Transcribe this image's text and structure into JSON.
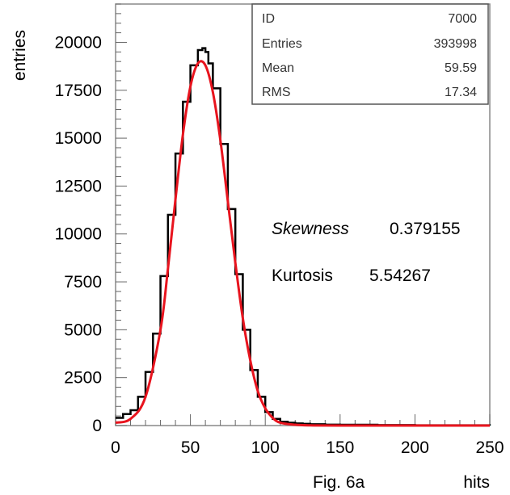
{
  "chart_data": {
    "type": "histogram",
    "xlabel": "hits",
    "ylabel": "entries",
    "caption": "Fig. 6a",
    "xlim": [
      0,
      250
    ],
    "ylim": [
      0,
      22000
    ],
    "x_ticks": [
      0,
      50,
      100,
      150,
      200,
      250
    ],
    "y_ticks": [
      0,
      2500,
      5000,
      7500,
      10000,
      12500,
      15000,
      17500,
      20000
    ],
    "series": [
      {
        "kind": "histogram",
        "color": "#000000",
        "x": [
          0,
          5,
          10,
          15,
          20,
          25,
          30,
          35,
          40,
          45,
          50,
          55,
          58,
          60,
          62,
          65,
          70,
          75,
          80,
          85,
          90,
          95,
          100,
          105,
          110,
          115,
          120,
          125,
          130,
          140,
          150,
          175,
          200,
          250
        ],
        "y": [
          400,
          600,
          800,
          1500,
          2800,
          4800,
          7800,
          11000,
          14200,
          16900,
          18800,
          19600,
          19700,
          19500,
          18900,
          17600,
          14700,
          11300,
          7900,
          5000,
          2900,
          1500,
          700,
          350,
          200,
          150,
          110,
          90,
          70,
          50,
          40,
          25,
          15,
          5
        ]
      },
      {
        "kind": "fit",
        "color": "#e8141e",
        "x": [
          0,
          10,
          20,
          30,
          35,
          40,
          45,
          50,
          55,
          60,
          65,
          70,
          75,
          80,
          85,
          90,
          95,
          100,
          105,
          110,
          120,
          130,
          150,
          200,
          250
        ],
        "y": [
          150,
          350,
          1500,
          5000,
          8200,
          11800,
          15200,
          17700,
          18900,
          18800,
          17400,
          14900,
          11700,
          8500,
          5600,
          3400,
          1800,
          900,
          400,
          150,
          40,
          10,
          0,
          0,
          0
        ]
      }
    ],
    "stats_box": {
      "rows": [
        {
          "label": "ID",
          "value": "7000"
        },
        {
          "label": "Entries",
          "value": "393998"
        },
        {
          "label": "Mean",
          "value": "59.59"
        },
        {
          "label": "RMS",
          "value": "17.34"
        }
      ]
    },
    "annotations": {
      "skewness_label": "Skewness",
      "skewness_value": "0.379155",
      "kurtosis_label": "Kurtosis",
      "kurtosis_value": "5.54267"
    },
    "grid": false
  }
}
